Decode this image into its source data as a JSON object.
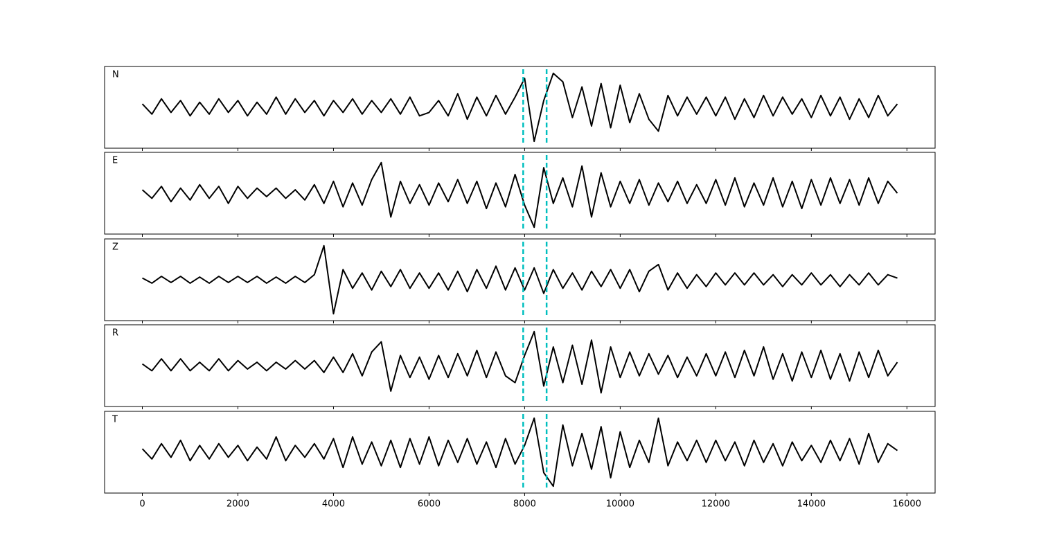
{
  "chart_data": {
    "type": "line",
    "x": [
      0,
      200,
      400,
      600,
      800,
      1000,
      1200,
      1400,
      1600,
      1800,
      2000,
      2200,
      2400,
      2600,
      2800,
      3000,
      3200,
      3400,
      3600,
      3800,
      4000,
      4200,
      4400,
      4600,
      4800,
      5000,
      5200,
      5400,
      5600,
      5800,
      6000,
      6200,
      6400,
      6600,
      6800,
      7000,
      7200,
      7400,
      7600,
      7800,
      8000,
      8200,
      8400,
      8600,
      8800,
      9000,
      9200,
      9400,
      9600,
      9800,
      10000,
      10200,
      10400,
      10600,
      10800,
      11000,
      11200,
      11400,
      11600,
      11800,
      12000,
      12200,
      12400,
      12600,
      12800,
      13000,
      13200,
      13400,
      13600,
      13800,
      14000,
      14200,
      14400,
      14600,
      14800,
      15000,
      15200,
      15400,
      15600,
      15800
    ],
    "xlim": [
      -790,
      16590
    ],
    "xticks": [
      0,
      2000,
      4000,
      6000,
      8000,
      10000,
      12000,
      14000,
      16000
    ],
    "ylim": [
      -120,
      120
    ],
    "vlines": [
      7970,
      8460
    ],
    "vline_color": "#00bfbf",
    "series": [
      {
        "name": "N",
        "color": "#000000",
        "values": [
          10,
          -20,
          25,
          -15,
          20,
          -25,
          15,
          -20,
          25,
          -15,
          20,
          -25,
          15,
          -20,
          30,
          -20,
          25,
          -15,
          20,
          -25,
          20,
          -15,
          25,
          -20,
          20,
          -15,
          25,
          -20,
          30,
          -25,
          -15,
          20,
          -25,
          40,
          -35,
          30,
          -25,
          35,
          -20,
          30,
          85,
          -100,
          20,
          100,
          75,
          -30,
          60,
          -55,
          70,
          -60,
          65,
          -45,
          40,
          -35,
          -70,
          35,
          -25,
          30,
          -20,
          30,
          -25,
          30,
          -35,
          25,
          -30,
          35,
          -25,
          30,
          -20,
          25,
          -30,
          35,
          -25,
          30,
          -35,
          25,
          -30,
          35,
          -25,
          10
        ]
      },
      {
        "name": "E",
        "color": "#000000",
        "values": [
          10,
          -15,
          20,
          -25,
          15,
          -20,
          25,
          -15,
          20,
          -30,
          20,
          -15,
          15,
          -10,
          15,
          -15,
          10,
          -20,
          25,
          -30,
          35,
          -40,
          30,
          -35,
          40,
          90,
          -70,
          35,
          -30,
          25,
          -35,
          30,
          -25,
          40,
          -30,
          35,
          -45,
          30,
          -40,
          55,
          -35,
          -100,
          75,
          -30,
          45,
          -40,
          80,
          -70,
          60,
          -40,
          35,
          -30,
          40,
          -35,
          30,
          -25,
          35,
          -30,
          25,
          -30,
          40,
          -35,
          45,
          -40,
          30,
          -35,
          45,
          -40,
          35,
          -45,
          40,
          -35,
          45,
          -30,
          40,
          -35,
          45,
          -30,
          35,
          0
        ]
      },
      {
        "name": "Z",
        "color": "#000000",
        "values": [
          5,
          -10,
          10,
          -8,
          10,
          -10,
          8,
          -10,
          10,
          -8,
          10,
          -8,
          10,
          -10,
          8,
          -10,
          10,
          -8,
          15,
          100,
          -100,
          30,
          -25,
          20,
          -30,
          25,
          -20,
          30,
          -25,
          20,
          -25,
          20,
          -30,
          25,
          -35,
          30,
          -25,
          40,
          -30,
          35,
          -30,
          35,
          -40,
          30,
          -25,
          20,
          -30,
          25,
          -20,
          30,
          -25,
          30,
          -35,
          25,
          45,
          -30,
          20,
          -25,
          15,
          -20,
          20,
          -15,
          20,
          -15,
          20,
          -15,
          15,
          -20,
          15,
          -15,
          20,
          -15,
          15,
          -20,
          15,
          -15,
          20,
          -15,
          15,
          5
        ]
      },
      {
        "name": "R",
        "color": "#000000",
        "values": [
          5,
          -15,
          20,
          -15,
          20,
          -15,
          10,
          -15,
          20,
          -15,
          15,
          -10,
          10,
          -15,
          10,
          -10,
          15,
          -10,
          15,
          -20,
          25,
          -20,
          35,
          -30,
          40,
          70,
          -75,
          30,
          -35,
          25,
          -40,
          30,
          -35,
          35,
          -30,
          45,
          -35,
          40,
          -30,
          -50,
          30,
          100,
          -60,
          55,
          -50,
          60,
          -55,
          75,
          -80,
          55,
          -35,
          40,
          -30,
          35,
          -25,
          30,
          -35,
          25,
          -30,
          35,
          -30,
          40,
          -35,
          45,
          -30,
          55,
          -40,
          35,
          -45,
          40,
          -35,
          45,
          -40,
          35,
          -45,
          40,
          -35,
          45,
          -30,
          10
        ]
      },
      {
        "name": "T",
        "color": "#000000",
        "values": [
          10,
          -20,
          25,
          -15,
          35,
          -25,
          20,
          -20,
          25,
          -15,
          20,
          -25,
          15,
          -20,
          45,
          -25,
          20,
          -15,
          25,
          -20,
          40,
          -45,
          45,
          -35,
          30,
          -40,
          35,
          -45,
          40,
          -35,
          45,
          -40,
          35,
          -30,
          40,
          -35,
          30,
          -45,
          40,
          -35,
          20,
          100,
          -60,
          -100,
          80,
          -40,
          55,
          -50,
          75,
          -75,
          60,
          -45,
          35,
          -30,
          100,
          -40,
          30,
          -25,
          35,
          -30,
          35,
          -25,
          30,
          -40,
          35,
          -30,
          25,
          -40,
          30,
          -25,
          20,
          -30,
          35,
          -25,
          40,
          -35,
          55,
          -30,
          25,
          5
        ]
      }
    ]
  }
}
